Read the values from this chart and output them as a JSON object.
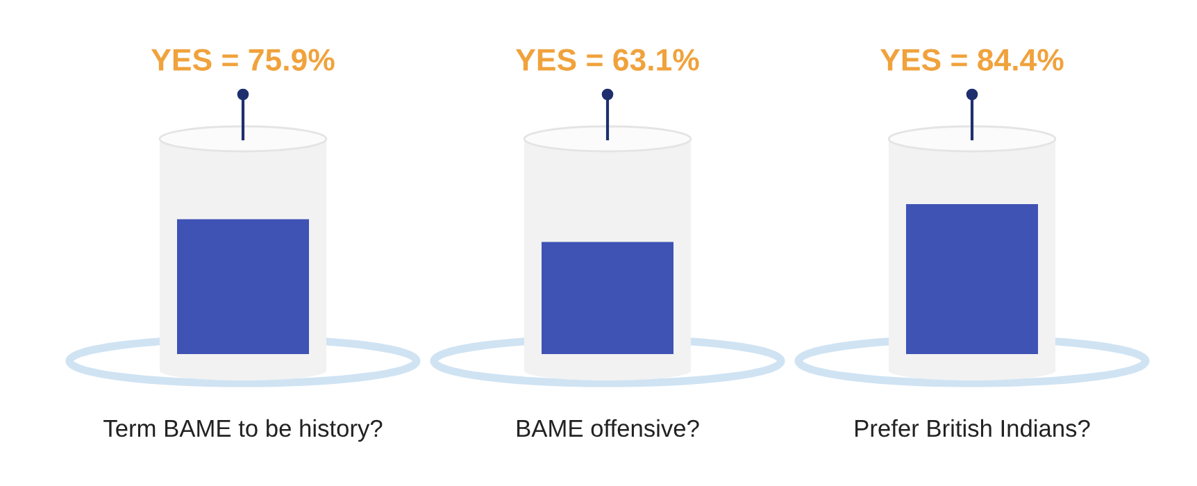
{
  "chart_data": {
    "type": "bar",
    "categories": [
      "Term BAME to be history?",
      "BAME offensive?",
      "Prefer British Indians?"
    ],
    "values": [
      75.9,
      63.1,
      84.4
    ],
    "value_labels": [
      "YES = 75.9%",
      "YES = 63.1%",
      "YES = 84.4%"
    ],
    "color": "#3f53b5"
  }
}
